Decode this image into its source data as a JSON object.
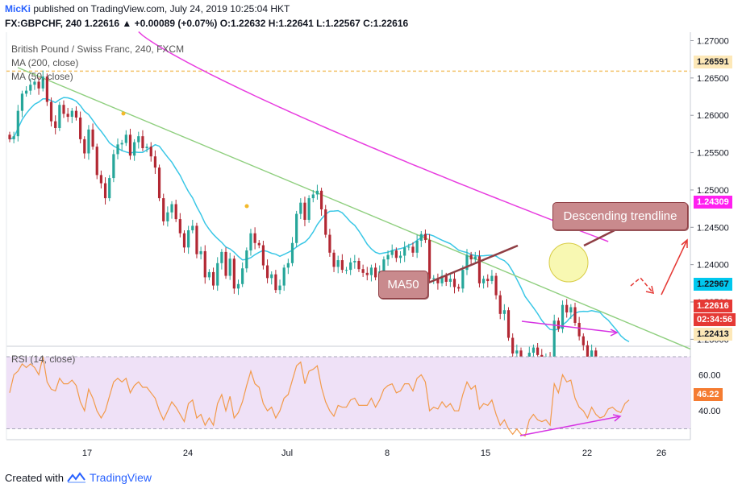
{
  "header": {
    "author": "MicKi",
    "published_text": "published on TradingView.com, July 24, 2019 10:25:04 HKT",
    "quote_line": "FX:GBPCHF, 240  1.22616 ▲ +0.00089 (+0.07%) O:1.22632 H:1.22641 L:1.22567 C:1.22616"
  },
  "legend": {
    "symbol": "British Pound / Swiss Franc, 240, FXCM",
    "ma1": "MA (200, close)",
    "ma2": "MA (50, close)",
    "rsi": "RSI (14, close)"
  },
  "badges": {
    "level_top": "1.26591",
    "ma200": "1.24309",
    "ma50": "1.22967",
    "price": "1.22616",
    "countdown": "02:34:56",
    "level_bottom": "1.22413",
    "rsi": "46.22"
  },
  "annotations": {
    "trendline_label": "Descending trendline",
    "ma50_label": "MA50"
  },
  "footer": {
    "created_with": "Created with",
    "brand": "TradingView"
  },
  "colors": {
    "bull": "#26a69a",
    "bear": "#b22833",
    "ma50": "#3ac7e6",
    "ma200": "#e83ee0",
    "trendline": "#8fcf7f",
    "level": "#f3c26a",
    "rsi_line": "#f29a4a",
    "rsi_band": "#efe1f7",
    "arrow_red": "#e53935",
    "arrow_magenta": "#d633e3",
    "badge_price": "#e53935",
    "badge_ma200": "#ff1ff0",
    "badge_ma50": "#00c8ee",
    "badge_level": "#fde8b8",
    "badge_rsi": "#f57c31"
  },
  "chart_data": {
    "type": "candlestick",
    "symbol": "GBPCHF",
    "timeframe": "240",
    "y_axis_ticks": [
      1.23,
      1.235,
      1.24,
      1.245,
      1.25,
      1.255,
      1.26,
      1.265,
      1.27
    ],
    "y_axis_tick_labels": [
      "1.23000",
      "1.23500",
      "1.24000",
      "1.24500",
      "1.25000",
      "1.25500",
      "1.26000",
      "1.26500",
      "1.27000"
    ],
    "x_axis_ticks": [
      "17",
      "24",
      "Jul",
      "8",
      "15",
      "22",
      "26"
    ],
    "ylim": [
      1.2295,
      1.2707
    ],
    "current_price": 1.22616,
    "ohlc_last": {
      "open": 1.22632,
      "high": 1.22641,
      "low": 1.22567,
      "close": 1.22616
    },
    "change": 0.00089,
    "change_pct": 0.07,
    "horizontal_levels": [
      1.26591,
      1.22413
    ],
    "close_series": [
      1.2568,
      1.2572,
      1.2606,
      1.2629,
      1.2633,
      1.2641,
      1.2645,
      1.2636,
      1.2652,
      1.2618,
      1.2592,
      1.2583,
      1.2614,
      1.2602,
      1.2598,
      1.2606,
      1.2597,
      1.2568,
      1.2549,
      1.2581,
      1.2558,
      1.252,
      1.2509,
      1.2489,
      1.2516,
      1.2548,
      1.2561,
      1.2563,
      1.2574,
      1.2546,
      1.2564,
      1.2572,
      1.2556,
      1.2558,
      1.2545,
      1.253,
      1.2489,
      1.2458,
      1.247,
      1.2481,
      1.2461,
      1.2442,
      1.2423,
      1.2446,
      1.2452,
      1.2414,
      1.2418,
      1.2383,
      1.239,
      1.2372,
      1.2402,
      1.2417,
      1.2385,
      1.2408,
      1.2368,
      1.2374,
      1.2395,
      1.2419,
      1.2442,
      1.2429,
      1.2426,
      1.2399,
      1.2382,
      1.2387,
      1.2366,
      1.2372,
      1.2396,
      1.2402,
      1.2429,
      1.2468,
      1.2483,
      1.246,
      1.2489,
      1.2494,
      1.2499,
      1.2474,
      1.244,
      1.2416,
      1.2397,
      1.2406,
      1.2393,
      1.2393,
      1.2403,
      1.2405,
      1.2394,
      1.2389,
      1.2386,
      1.2396,
      1.2383,
      1.2391,
      1.2407,
      1.2413,
      1.2419,
      1.2409,
      1.2412,
      1.2423,
      1.2424,
      1.2416,
      1.2432,
      1.2441,
      1.2433,
      1.2381,
      1.2382,
      1.2375,
      1.2385,
      1.2377,
      1.2381,
      1.237,
      1.2368,
      1.2393,
      1.2413,
      1.2407,
      1.2411,
      1.2375,
      1.2381,
      1.2378,
      1.2385,
      1.2359,
      1.2334,
      1.2339,
      1.2302,
      1.2281,
      1.2285,
      1.227,
      1.2265,
      1.2282,
      1.2289,
      1.2279,
      1.2274,
      1.2277,
      1.2266,
      1.2325,
      1.2314,
      1.2346,
      1.2336,
      1.2343,
      1.2322,
      1.2304,
      1.2292,
      1.2273,
      1.2285,
      1.226,
      1.2251,
      1.2248,
      1.2258,
      1.2262,
      1.2256,
      1.225,
      1.2262,
      1.2262
    ],
    "ma50_end": 1.22967,
    "ma200_end": 1.24309,
    "rsi": {
      "name": "RSI (14, close)",
      "ticks": [
        40,
        60
      ],
      "band": [
        30,
        70
      ],
      "ylim": [
        24,
        74
      ],
      "last": 46.22,
      "values": [
        50,
        60,
        62,
        66,
        64,
        66,
        64,
        60,
        70,
        56,
        52,
        51,
        58,
        55,
        55,
        57,
        54,
        45,
        40,
        52,
        47,
        40,
        36,
        40,
        48,
        56,
        58,
        56,
        58,
        50,
        54,
        56,
        53,
        53,
        50,
        47,
        40,
        35,
        40,
        45,
        42,
        38,
        34,
        44,
        46,
        36,
        38,
        32,
        36,
        32,
        44,
        49,
        40,
        48,
        36,
        39,
        45,
        54,
        62,
        55,
        53,
        44,
        40,
        42,
        36,
        40,
        47,
        49,
        57,
        65,
        67,
        55,
        62,
        63,
        65,
        53,
        45,
        40,
        37,
        43,
        42,
        42,
        46,
        47,
        43,
        43,
        43,
        47,
        42,
        46,
        52,
        54,
        55,
        50,
        51,
        55,
        55,
        51,
        58,
        60,
        56,
        40,
        42,
        41,
        45,
        42,
        44,
        40,
        40,
        49,
        56,
        52,
        54,
        41,
        44,
        43,
        46,
        38,
        32,
        35,
        30,
        27,
        30,
        27,
        26,
        35,
        38,
        35,
        34,
        35,
        32,
        55,
        50,
        60,
        56,
        57,
        47,
        42,
        40,
        36,
        42,
        38,
        36,
        37,
        41,
        42,
        40,
        39,
        44,
        46
      ]
    }
  }
}
